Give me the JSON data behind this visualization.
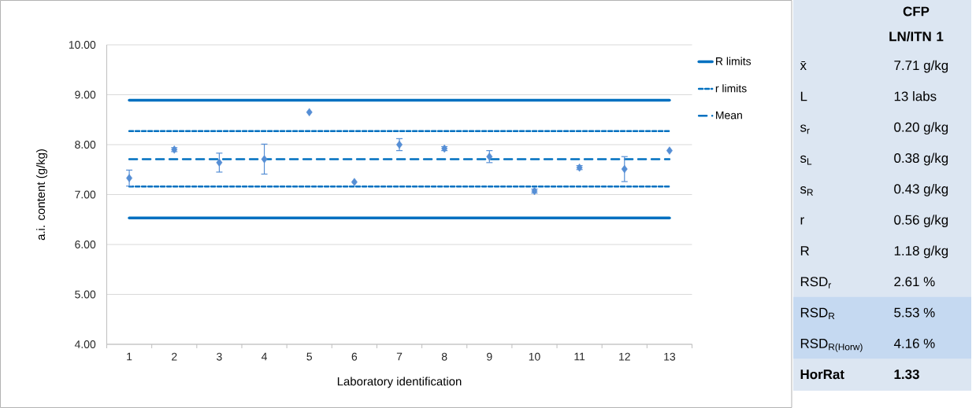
{
  "chart_data": [
    {
      "type": "scatter",
      "xlabel": "Laboratory identification",
      "ylabel": "a.i. content (g/kg)",
      "categories": [
        "1",
        "2",
        "3",
        "4",
        "5",
        "6",
        "7",
        "8",
        "9",
        "10",
        "11",
        "12",
        "13"
      ],
      "values": [
        7.33,
        7.9,
        7.64,
        7.71,
        8.65,
        7.25,
        8.0,
        7.92,
        7.76,
        7.07,
        7.54,
        7.51,
        7.88
      ],
      "errors": [
        0.16,
        0.04,
        0.19,
        0.3,
        null,
        null,
        0.12,
        0.04,
        0.12,
        0.04,
        0.04,
        0.25,
        null
      ],
      "color": "#558ed5",
      "marker": "diamond",
      "ylim": [
        4,
        10
      ],
      "yticks": [
        {
          "value": 4,
          "label": "4.00"
        },
        {
          "value": 5,
          "label": "5.00"
        },
        {
          "value": 6,
          "label": "6.00"
        },
        {
          "value": 7,
          "label": "7.00"
        },
        {
          "value": 8,
          "label": "8.00"
        },
        {
          "value": 9,
          "label": "9.00"
        },
        {
          "value": 10,
          "label": "10.00"
        }
      ],
      "grid": "y",
      "legend": "right",
      "ref_lines": [
        {
          "axis": "y",
          "value": 8.89,
          "label": "R limits",
          "color": "#0070c0",
          "line_style": "solid"
        },
        {
          "axis": "y",
          "value": 6.53,
          "color": "#0070c0",
          "line_style": "solid"
        },
        {
          "axis": "y",
          "value": 8.27,
          "label": "r limits",
          "color": "#0070c0",
          "line_style": "dotted"
        },
        {
          "axis": "y",
          "value": 7.16,
          "color": "#0070c0",
          "line_style": "dotted"
        },
        {
          "axis": "y",
          "value": 7.71,
          "label": "Mean",
          "color": "#0070c0",
          "line_style": "dashed"
        }
      ]
    },
    {
      "type": "other",
      "title": "CFP LN/ITN 1",
      "annotations": [
        "x̄",
        "7.71 g/kg",
        "L",
        "13 labs",
        "s$_{r}$",
        "0.20 g/kg",
        "s$_{L}$",
        "0.38 g/kg",
        "s$_{R}$",
        "0.43 g/kg",
        "r",
        "0.56 g/kg",
        "R",
        "1.18 g/kg",
        "RSD$_{r}$",
        "2.61 %",
        "RSD$_{R}$",
        "5.53 %",
        "RSD$_{R(Horw)}$",
        "4.16 %",
        "HorRat",
        "1.33"
      ]
    }
  ]
}
